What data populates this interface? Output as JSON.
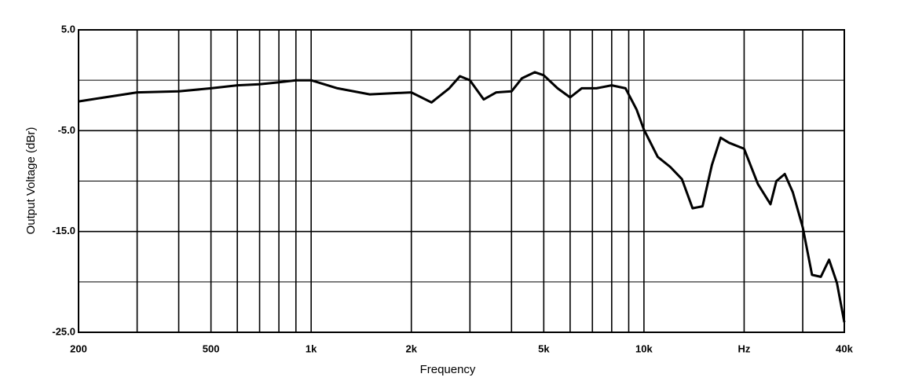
{
  "chart_data": {
    "type": "line",
    "x_axis_label": "Frequency",
    "y_axis_label": "Output Voltage (dBr)",
    "xscale": "log",
    "xlim": [
      200,
      40000
    ],
    "ylim": [
      -25,
      5
    ],
    "xticks": [
      200,
      500,
      {
        "value": 1000,
        "label": "1k"
      },
      {
        "value": 2000,
        "label": "2k"
      },
      {
        "value": 5000,
        "label": "5k"
      },
      {
        "value": 10000,
        "label": "10k"
      },
      {
        "value": 20000,
        "label": "Hz"
      },
      {
        "value": 40000,
        "label": "40k"
      }
    ],
    "x_minor_grid": [
      300,
      400,
      600,
      700,
      800,
      900,
      3000,
      4000,
      6000,
      7000,
      8000,
      9000,
      30000
    ],
    "yticks": [
      {
        "value": 5,
        "label": "5.0"
      },
      {
        "value": -5,
        "label": "-5.0"
      },
      {
        "value": -15,
        "label": "-15.0"
      },
      {
        "value": -25,
        "label": "-25.0"
      }
    ],
    "y_minor_grid": [
      0,
      -10,
      -20
    ],
    "grid": true,
    "series": [
      {
        "color": "#000000",
        "x": [
          200,
          300,
          400,
          500,
          600,
          700,
          800,
          900,
          1000,
          1200,
          1500,
          2000,
          2300,
          2600,
          2800,
          3000,
          3300,
          3600,
          4000,
          4300,
          4700,
          5000,
          5500,
          6000,
          6500,
          7200,
          8000,
          8800,
          9500,
          10000,
          11000,
          12000,
          13000,
          14000,
          15000,
          16000,
          17000,
          18000,
          20000,
          22000,
          24000,
          25000,
          26500,
          28000,
          30000,
          32000,
          34000,
          36000,
          38000,
          40000
        ],
        "values": [
          -2.1,
          -1.2,
          -1.1,
          -0.8,
          -0.5,
          -0.4,
          -0.2,
          0,
          0,
          -0.8,
          -1.4,
          -1.2,
          -2.2,
          -0.8,
          0.4,
          0,
          -1.9,
          -1.2,
          -1.1,
          0.2,
          0.8,
          0.5,
          -0.8,
          -1.7,
          -0.8,
          -0.8,
          -0.5,
          -0.8,
          -2.9,
          -4.9,
          -7.6,
          -8.6,
          -9.8,
          -12.7,
          -12.5,
          -8.4,
          -5.7,
          -6.2,
          -6.8,
          -10.3,
          -12.3,
          -10,
          -9.3,
          -11.1,
          -14.6,
          -19.3,
          -19.5,
          -17.8,
          -20.1,
          -24
        ]
      }
    ]
  }
}
